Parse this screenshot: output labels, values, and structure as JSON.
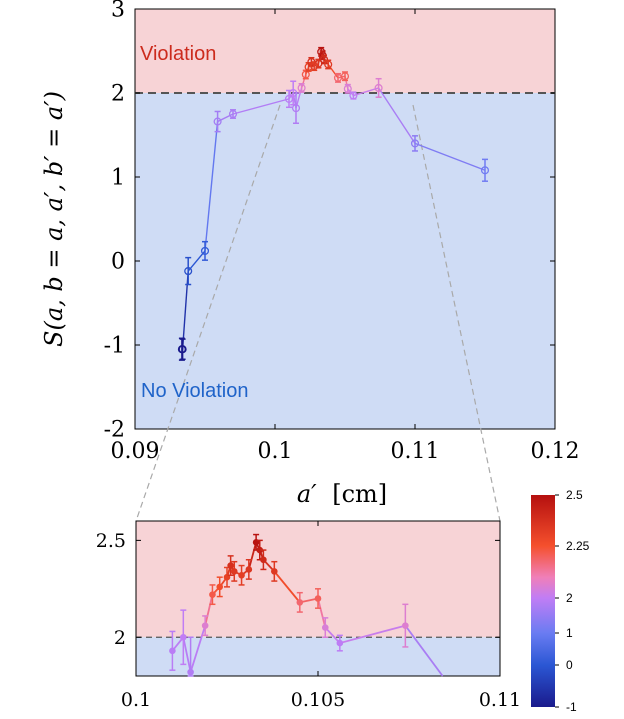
{
  "colors": {
    "violation_band": "#f7d3d6",
    "no_violation_band": "#cfdcf5",
    "violation_text": "#cc2b1d",
    "no_violation_text": "#1f63c9",
    "threshold_line": "#555555",
    "zoom_guides": "#a9a9a9"
  },
  "chart_data": [
    {
      "id": "main",
      "type": "line",
      "ylabel": "S(a, b = a, a′, b′ = a′)",
      "xlabel_var": "a′",
      "xlabel_unit": "[cm]",
      "xlim": [
        0.09,
        0.12
      ],
      "ylim": [
        -2,
        3
      ],
      "x_ticks": [
        0.09,
        0.1,
        0.11,
        0.12
      ],
      "x_tick_labels": [
        "0.09",
        "0.1",
        "0.11",
        "0.12"
      ],
      "y_ticks": [
        -2,
        -1,
        0,
        1,
        2,
        3
      ],
      "y_tick_labels": [
        "-2",
        "-1",
        "0",
        "1",
        "2",
        "3"
      ],
      "threshold": 2,
      "region_labels": {
        "upper": "Violation",
        "lower": "No Violation"
      },
      "marker": "open-circle",
      "points": [
        {
          "x": 0.09335,
          "y": -1.05,
          "err": 0.13
        },
        {
          "x": 0.0934,
          "y": -1.05,
          "err": 0.12
        },
        {
          "x": 0.0938,
          "y": -0.12,
          "err": 0.16
        },
        {
          "x": 0.095,
          "y": 0.12,
          "err": 0.11
        },
        {
          "x": 0.0959,
          "y": 1.66,
          "err": 0.12
        },
        {
          "x": 0.097,
          "y": 1.75,
          "err": 0.05
        },
        {
          "x": 0.101,
          "y": 1.93,
          "err": 0.1
        },
        {
          "x": 0.1013,
          "y": 2.0,
          "err": 0.14
        },
        {
          "x": 0.1015,
          "y": 1.82,
          "err": 0.18
        },
        {
          "x": 0.1019,
          "y": 2.06,
          "err": 0.05
        },
        {
          "x": 0.1022,
          "y": 2.22,
          "err": 0.05
        },
        {
          "x": 0.1024,
          "y": 2.31,
          "err": 0.05
        },
        {
          "x": 0.1026,
          "y": 2.37,
          "err": 0.05
        },
        {
          "x": 0.1028,
          "y": 2.32,
          "err": 0.05
        },
        {
          "x": 0.1031,
          "y": 2.35,
          "err": 0.05
        },
        {
          "x": 0.1033,
          "y": 2.49,
          "err": 0.05
        },
        {
          "x": 0.1034,
          "y": 2.45,
          "err": 0.05
        },
        {
          "x": 0.1035,
          "y": 2.4,
          "err": 0.05
        },
        {
          "x": 0.1038,
          "y": 2.34,
          "err": 0.05
        },
        {
          "x": 0.1045,
          "y": 2.18,
          "err": 0.05
        },
        {
          "x": 0.105,
          "y": 2.2,
          "err": 0.05
        },
        {
          "x": 0.1052,
          "y": 2.05,
          "err": 0.05
        },
        {
          "x": 0.1056,
          "y": 1.97,
          "err": 0.04
        },
        {
          "x": 0.1074,
          "y": 2.06,
          "err": 0.11
        },
        {
          "x": 0.11,
          "y": 1.4,
          "err": 0.09
        },
        {
          "x": 0.115,
          "y": 1.08,
          "err": 0.13
        }
      ]
    },
    {
      "id": "inset",
      "type": "line",
      "xlim": [
        0.1,
        0.11
      ],
      "ylim": [
        1.8,
        2.6
      ],
      "x_ticks": [
        0.1,
        0.105,
        0.11
      ],
      "x_tick_labels": [
        "0.1",
        "0.105",
        "0.11"
      ],
      "y_ticks": [
        2,
        2.5
      ],
      "y_tick_labels": [
        "2",
        "2.5"
      ],
      "threshold": 2,
      "marker": "filled-dot",
      "points": [
        {
          "x": 0.101,
          "y": 1.93,
          "err": 0.1
        },
        {
          "x": 0.1013,
          "y": 2.0,
          "err": 0.14
        },
        {
          "x": 0.1015,
          "y": 1.82,
          "err": 0.18
        },
        {
          "x": 0.1019,
          "y": 2.06,
          "err": 0.05
        },
        {
          "x": 0.1021,
          "y": 2.22,
          "err": 0.05
        },
        {
          "x": 0.1023,
          "y": 2.26,
          "err": 0.05
        },
        {
          "x": 0.1025,
          "y": 2.31,
          "err": 0.05
        },
        {
          "x": 0.1026,
          "y": 2.37,
          "err": 0.05
        },
        {
          "x": 0.1027,
          "y": 2.34,
          "err": 0.05
        },
        {
          "x": 0.1029,
          "y": 2.32,
          "err": 0.05
        },
        {
          "x": 0.1031,
          "y": 2.35,
          "err": 0.05
        },
        {
          "x": 0.1033,
          "y": 2.49,
          "err": 0.04
        },
        {
          "x": 0.1034,
          "y": 2.45,
          "err": 0.05
        },
        {
          "x": 0.1035,
          "y": 2.4,
          "err": 0.05
        },
        {
          "x": 0.1038,
          "y": 2.34,
          "err": 0.05
        },
        {
          "x": 0.1045,
          "y": 2.18,
          "err": 0.05
        },
        {
          "x": 0.105,
          "y": 2.2,
          "err": 0.05
        },
        {
          "x": 0.1052,
          "y": 2.05,
          "err": 0.05
        },
        {
          "x": 0.1056,
          "y": 1.97,
          "err": 0.04
        },
        {
          "x": 0.1074,
          "y": 2.06,
          "err": 0.11
        },
        {
          "x": 0.11,
          "y": 1.4,
          "err": 0.09
        }
      ]
    }
  ],
  "colorbar": {
    "tick_labels": [
      "2.5",
      "2.25",
      "2",
      "1",
      "0",
      "-1"
    ],
    "tick_values": [
      2.5,
      2.25,
      2,
      1,
      0,
      -1
    ],
    "stops": [
      {
        "value": -1,
        "color": "#1a1a8c"
      },
      {
        "value": 0,
        "color": "#2b57d4"
      },
      {
        "value": 1,
        "color": "#6a7cf2"
      },
      {
        "value": 2,
        "color": "#c07df5"
      },
      {
        "value": 2.1,
        "color": "#f07fb8"
      },
      {
        "value": 2.25,
        "color": "#f5502d"
      },
      {
        "value": 2.5,
        "color": "#b5100f"
      }
    ]
  }
}
